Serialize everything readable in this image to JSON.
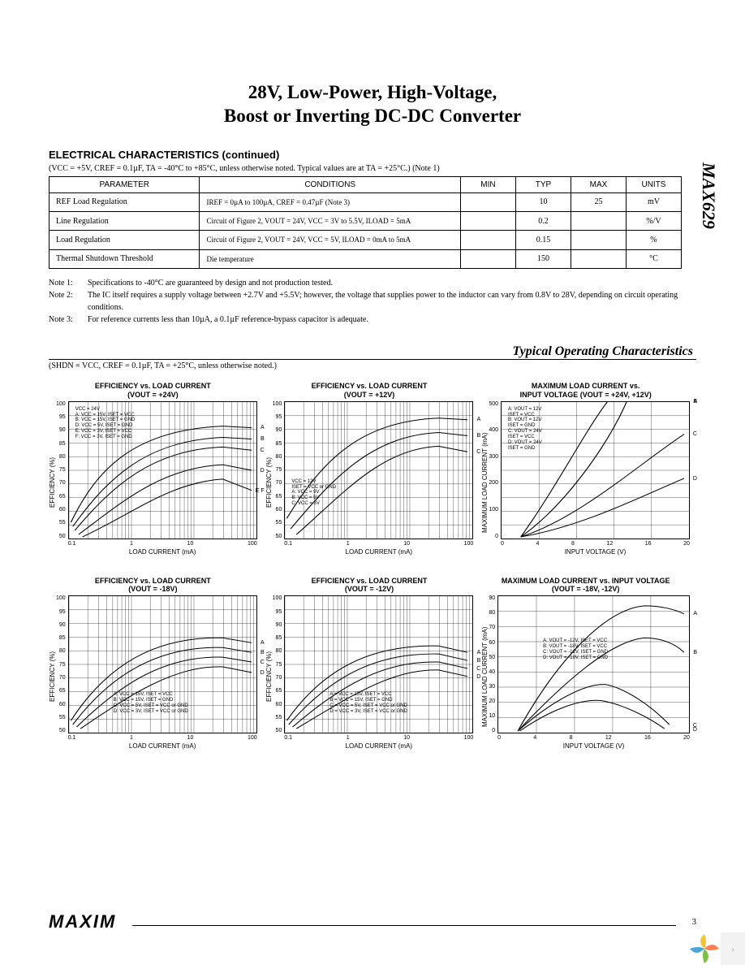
{
  "title_line1": "28V, Low-Power, High-Voltage,",
  "title_line2": "Boost or Inverting DC-DC Converter",
  "part_number": "MAX629",
  "section_heading": "ELECTRICAL CHARACTERISTICS (continued)",
  "conditions_line": "(VCC = +5V, CREF = 0.1µF, TA = -40°C to +85°C, unless otherwise noted. Typical values are at TA = +25°C.) (Note 1)",
  "table": {
    "headers": [
      "PARAMETER",
      "CONDITIONS",
      "MIN",
      "TYP",
      "MAX",
      "UNITS"
    ],
    "col_widths": [
      "150px",
      "260px",
      "55px",
      "55px",
      "55px",
      "55px"
    ],
    "rows": [
      {
        "param": "REF Load Regulation",
        "cond": "IREF = 0µA to 100µA, CREF = 0.47µF (Note 3)",
        "min": "",
        "typ": "10",
        "max": "25",
        "units": "mV"
      },
      {
        "param": "Line Regulation",
        "cond": "Circuit of Figure 2, VOUT = 24V, VCC = 3V to 5.5V, ILOAD = 5mA",
        "min": "",
        "typ": "0.2",
        "max": "",
        "units": "%/V"
      },
      {
        "param": "Load Regulation",
        "cond": "Circuit of Figure 2, VOUT = 24V, VCC = 5V, ILOAD = 0mA to 5mA",
        "min": "",
        "typ": "0.15",
        "max": "",
        "units": "%"
      },
      {
        "param": "Thermal Shutdown Threshold",
        "cond": "Die temperature",
        "min": "",
        "typ": "150",
        "max": "",
        "units": "°C"
      }
    ]
  },
  "notes": [
    {
      "label": "Note 1:",
      "text": "Specifications to -40°C are guaranteed by design and not production tested."
    },
    {
      "label": "Note 2:",
      "text": "The IC itself requires a supply voltage between +2.7V and +5.5V; however, the voltage that supplies power to the inductor can vary from 0.8V to 28V, depending on circuit operating conditions."
    },
    {
      "label": "Note 3:",
      "text": "For reference currents less than 10µA, a 0.1µF reference-bypass capacitor is adequate."
    }
  ],
  "toc_heading": "Typical Operating Characteristics",
  "toc_conditions": "(SHDN = VCC, CREF = 0.1µF, TA = +25°C, unless otherwise noted.)",
  "charts": [
    {
      "title": "EFFICIENCY vs. LOAD CURRENT\n(VOUT = +24V)",
      "ylabel": "EFFICIENCY (%)",
      "xlabel": "LOAD CURRENT (mA)",
      "xscale": "log",
      "yticks": [
        "100",
        "95",
        "90",
        "85",
        "80",
        "75",
        "70",
        "65",
        "60",
        "55",
        "50"
      ],
      "xticks": [
        "0.1",
        "1",
        "10",
        "100"
      ],
      "ylim": [
        50,
        100
      ],
      "legend": [
        "VCC = 24V",
        "A: VCC = 15V, ISET = VCC",
        "B: VCC = 15V, ISET = GND",
        "",
        "D: VCC = 5V, ISET = GND",
        "E: VCC = 3V, ISET = VCC",
        "F: VCC = 3V, ISET = GND"
      ],
      "curve_labels": [
        "A",
        "B",
        "C",
        "D",
        "E  F"
      ],
      "curves": [
        "M 2 150 C 30 80, 70 35, 160 30 L 190 32",
        "M 4 155 C 40 95, 80 48, 160 44 L 190 46",
        "M 6 160 C 45 105, 85 60, 160 56 L 190 60",
        "M 10 165 C 55 125, 95 82, 160 78 L 190 85",
        "M 14 168 C 65 140, 105 100, 160 96 L 190 110"
      ]
    },
    {
      "title": "EFFICIENCY vs. LOAD CURRENT\n(VOUT = +12V)",
      "ylabel": "EFFICIENCY (%)",
      "xlabel": "LOAD CURRENT (mA)",
      "xscale": "log",
      "yticks": [
        "100",
        "95",
        "90",
        "85",
        "80",
        "75",
        "70",
        "65",
        "60",
        "55",
        "50"
      ],
      "xticks": [
        "0.1",
        "1",
        "10",
        "100"
      ],
      "ylim": [
        50,
        100
      ],
      "legend": [
        "VCC = 12V",
        "ISET = VCC or GND",
        "A: VCC = 9V",
        "B: VCC = 5V",
        "C: VCC = 3V"
      ],
      "curve_labels": [
        "A",
        "B",
        "C"
      ],
      "curves": [
        "M 2 145 C 40 70, 80 24, 160 20 L 190 22",
        "M 6 158 C 50 95, 90 42, 160 38 L 190 42",
        "M 12 165 C 60 115, 100 58, 160 55 L 190 62"
      ]
    },
    {
      "title": "MAXIMUM LOAD CURRENT vs.\nINPUT VOLTAGE (VOUT = +24V, +12V)",
      "ylabel": "MAXIMUM LOAD CURRENT (mA)",
      "xlabel": "INPUT VOLTAGE (V)",
      "xscale": "linear",
      "yticks": [
        "500",
        "",
        "400",
        "",
        "300",
        "",
        "200",
        "",
        "100",
        "",
        "0"
      ],
      "xticks": [
        "0",
        "4",
        "8",
        "12",
        "16",
        "20"
      ],
      "ylim": [
        0,
        500
      ],
      "legend": [
        "A: VOUT = 12V",
        "ISET = VCC",
        "B: VOUT = 12V",
        "ISET = GND",
        "C: VOUT = 24V",
        "ISET = VCC",
        "D: VOUT = 24V",
        "ISET = GND"
      ],
      "curve_labels": [
        "A",
        "B",
        "C",
        "D"
      ],
      "curves": [
        "M 20 168 C 55 110, 90 30, 110 0",
        "M 20 168 C 65 130, 110 55, 130 0",
        "M 20 168 C 80 145, 140 80, 190 40",
        "M 20 168 C 85 155, 150 115, 190 95"
      ]
    },
    {
      "title": "EFFICIENCY vs. LOAD CURRENT\n(VOUT = -18V)",
      "ylabel": "EFFICIENCY (%)",
      "xlabel": "LOAD CURRENT (mA)",
      "xscale": "log",
      "yticks": [
        "100",
        "95",
        "90",
        "85",
        "80",
        "75",
        "70",
        "65",
        "60",
        "55",
        "50"
      ],
      "xticks": [
        "0.1",
        "1",
        "10",
        "100"
      ],
      "ylim": [
        50,
        100
      ],
      "legend": [
        "A: VCC = 15V, ISET = VCC",
        "B: VCC = 15V, ISET = GND",
        "C: VCC = 5V, ISET = VCC or GND",
        "D: VCC = 3V, ISET = VCC or GND"
      ],
      "curve_labels": [
        "A",
        "B",
        "C",
        "D"
      ],
      "curves": [
        "M 2 155 C 40 85, 90 50, 160 52 L 190 58",
        "M 4 160 C 45 95, 95 62, 160 64 L 190 70",
        "M 8 163 C 55 108, 100 74, 160 76 L 190 82",
        "M 12 165 C 65 122, 110 86, 160 88 L 190 95"
      ]
    },
    {
      "title": "EFFICIENCY vs. LOAD CURRENT\n(VOUT = -12V)",
      "ylabel": "EFFICIENCY (%)",
      "xlabel": "LOAD CURRENT (mA)",
      "xscale": "log",
      "yticks": [
        "100",
        "95",
        "90",
        "85",
        "80",
        "75",
        "70",
        "65",
        "60",
        "55",
        "50"
      ],
      "xticks": [
        "0.1",
        "1",
        "10",
        "100"
      ],
      "ylim": [
        50,
        100
      ],
      "legend": [
        "A = VCC = 15V, ISET = VCC",
        "B = VCC = 15V, ISET = GND",
        "C = VCC = 5V, ISET = VCC or GND",
        "D = VCC = 3V, ISET = VCC or GND"
      ],
      "curve_labels": [
        "A",
        "B",
        "C",
        "D"
      ],
      "curves": [
        "M 2 155 C 40 90, 90 60, 160 62 L 190 70",
        "M 4 160 C 48 100, 95 70, 160 72 L 190 80",
        "M 8 163 C 58 112, 102 80, 160 82 L 190 90",
        "M 12 165 C 68 125, 112 90, 160 92 L 190 100"
      ]
    },
    {
      "title": "MAXIMUM LOAD CURRENT vs. INPUT VOLTAGE\n(VOUT = -18V, -12V)",
      "ylabel": "MAXIMUM LOAD CURRENT (mA)",
      "xlabel": "INPUT VOLTAGE (V)",
      "xscale": "linear",
      "yticks": [
        "90",
        "80",
        "70",
        "60",
        "50",
        "40",
        "30",
        "20",
        "10",
        "0"
      ],
      "xticks": [
        "0",
        "4",
        "8",
        "12",
        "16",
        "20"
      ],
      "ylim": [
        0,
        90
      ],
      "legend": [
        "A: VOUT = -12V, ISET = VCC",
        "B: VOUT = -18V, ISET = VCC",
        "C: VOUT = -12V, ISET = GND",
        "D: VOUT = -18V, ISET = GND"
      ],
      "curve_labels": [
        "A",
        "B",
        "C",
        "D"
      ],
      "curves": [
        "M 20 168 C 60 80, 110 15, 150 12 C 165 12, 180 16, 190 22",
        "M 20 168 C 65 110, 115 55, 150 52 C 165 52, 180 58, 190 70",
        "M 20 168 C 55 130, 90 108, 110 110 C 130 115, 155 135, 175 160",
        "M 22 168 C 55 140, 85 128, 105 130 C 125 134, 150 148, 170 165"
      ]
    }
  ],
  "footer": {
    "logo": "MAXIM",
    "page": "3"
  },
  "colors": {
    "text": "#000000",
    "bg": "#ffffff",
    "grid": "#000000",
    "curve": "#000000"
  }
}
